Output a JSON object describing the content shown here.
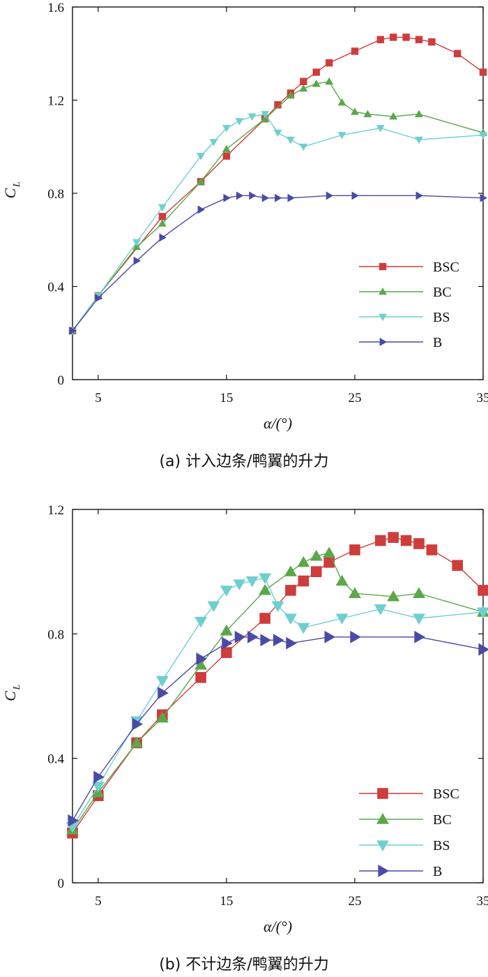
{
  "chart_data": [
    {
      "id": "a",
      "type": "line",
      "caption": "(a) 计入边条/鸭翼的升力",
      "xlabel": "α/(°)",
      "ylabel": "C",
      "ylabel_sub": "L",
      "xlim": [
        3,
        35
      ],
      "ylim": [
        0,
        1.6
      ],
      "xticks": [
        5,
        15,
        25,
        35
      ],
      "yticks": [
        0,
        0.4,
        0.8,
        1.2,
        1.6
      ],
      "ytick_labels": [
        "0",
        "0.4",
        "0.8",
        "1.2",
        "1.6"
      ],
      "marker_scale": "small",
      "legend_position": "lower-right",
      "series": [
        {
          "name": "BSC",
          "color": "#cf3c3c",
          "marker": "square",
          "x": [
            3,
            5,
            10,
            13,
            15,
            18,
            19,
            20,
            21,
            22,
            23,
            25,
            27,
            28,
            29,
            30,
            31,
            33,
            35
          ],
          "y": [
            0.21,
            0.36,
            0.7,
            0.85,
            0.96,
            1.12,
            1.18,
            1.23,
            1.28,
            1.32,
            1.36,
            1.41,
            1.46,
            1.47,
            1.47,
            1.46,
            1.45,
            1.4,
            1.32
          ]
        },
        {
          "name": "BC",
          "color": "#5aa84a",
          "marker": "triangle-up",
          "x": [
            3,
            5,
            8,
            10,
            13,
            15,
            18,
            20,
            21,
            22,
            23,
            24,
            25,
            26,
            28,
            30,
            35
          ],
          "y": [
            0.21,
            0.36,
            0.57,
            0.67,
            0.85,
            0.99,
            1.12,
            1.22,
            1.25,
            1.27,
            1.28,
            1.19,
            1.15,
            1.14,
            1.13,
            1.14,
            1.06
          ]
        },
        {
          "name": "BS",
          "color": "#6fcfcf",
          "marker": "triangle-down",
          "x": [
            3,
            5,
            8,
            10,
            13,
            14,
            15,
            16,
            17,
            18,
            19,
            20,
            21,
            24,
            27,
            30,
            35
          ],
          "y": [
            0.21,
            0.36,
            0.59,
            0.74,
            0.96,
            1.02,
            1.08,
            1.11,
            1.13,
            1.14,
            1.06,
            1.03,
            1.0,
            1.05,
            1.08,
            1.03,
            1.05
          ]
        },
        {
          "name": "B",
          "color": "#4a4aa8",
          "marker": "triangle-right",
          "x": [
            3,
            5,
            8,
            10,
            13,
            15,
            16,
            17,
            18,
            19,
            20,
            23,
            25,
            30,
            35
          ],
          "y": [
            0.21,
            0.35,
            0.51,
            0.61,
            0.73,
            0.78,
            0.79,
            0.79,
            0.78,
            0.78,
            0.78,
            0.79,
            0.79,
            0.79,
            0.78
          ]
        }
      ]
    },
    {
      "id": "b",
      "type": "line",
      "caption": "(b) 不计边条/鸭翼的升力",
      "xlabel": "α/(°)",
      "ylabel": "C",
      "ylabel_sub": "L",
      "xlim": [
        3,
        35
      ],
      "ylim": [
        0,
        1.2
      ],
      "xticks": [
        5,
        15,
        25,
        35
      ],
      "yticks": [
        0,
        0.4,
        0.8,
        1.2
      ],
      "ytick_labels": [
        "0",
        "0.4",
        "0.8",
        "1.2"
      ],
      "marker_scale": "large",
      "legend_position": "lower-right",
      "series": [
        {
          "name": "BSC",
          "color": "#cf3c3c",
          "marker": "square",
          "x": [
            3,
            5,
            8,
            10,
            13,
            15,
            18,
            20,
            21,
            22,
            23,
            25,
            27,
            28,
            29,
            30,
            31,
            33,
            35
          ],
          "y": [
            0.16,
            0.28,
            0.45,
            0.54,
            0.66,
            0.74,
            0.85,
            0.94,
            0.97,
            1.0,
            1.03,
            1.07,
            1.1,
            1.11,
            1.1,
            1.09,
            1.07,
            1.02,
            0.94
          ]
        },
        {
          "name": "BC",
          "color": "#5aa84a",
          "marker": "triangle-up",
          "x": [
            3,
            5,
            8,
            10,
            13,
            15,
            18,
            20,
            21,
            22,
            23,
            24,
            25,
            28,
            30,
            35
          ],
          "y": [
            0.17,
            0.29,
            0.45,
            0.53,
            0.7,
            0.81,
            0.94,
            1.0,
            1.03,
            1.05,
            1.06,
            0.97,
            0.93,
            0.92,
            0.93,
            0.87
          ]
        },
        {
          "name": "BS",
          "color": "#6fcfcf",
          "marker": "triangle-down",
          "x": [
            3,
            5,
            8,
            10,
            13,
            14,
            15,
            16,
            17,
            18,
            19,
            20,
            21,
            24,
            27,
            30,
            35
          ],
          "y": [
            0.18,
            0.31,
            0.52,
            0.65,
            0.84,
            0.89,
            0.94,
            0.96,
            0.97,
            0.98,
            0.89,
            0.85,
            0.82,
            0.85,
            0.88,
            0.85,
            0.87
          ]
        },
        {
          "name": "B",
          "color": "#4a4aa8",
          "marker": "triangle-right",
          "x": [
            3,
            5,
            8,
            10,
            13,
            15,
            16,
            17,
            18,
            19,
            20,
            23,
            25,
            30,
            35
          ],
          "y": [
            0.2,
            0.34,
            0.51,
            0.61,
            0.72,
            0.77,
            0.79,
            0.79,
            0.78,
            0.78,
            0.77,
            0.79,
            0.79,
            0.79,
            0.75
          ]
        }
      ]
    }
  ]
}
